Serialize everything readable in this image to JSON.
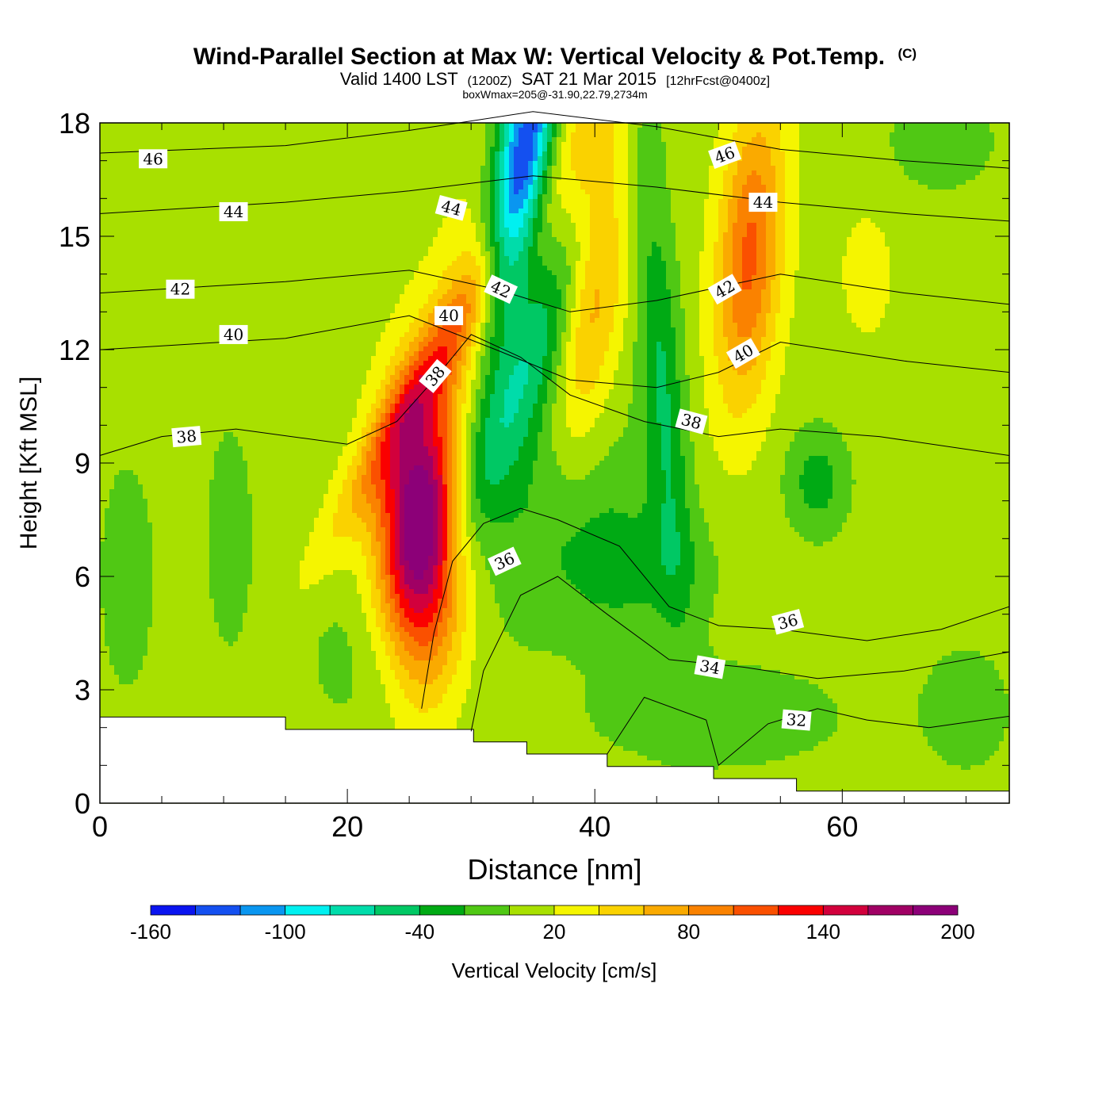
{
  "chart_data": {
    "type": "heatmap",
    "title": "Wind-Parallel Section at Max W: Vertical Velocity & Pot.Temp.",
    "title_mark": "(C)",
    "subtitle": {
      "valid": "Valid 1400 LST",
      "utc": "(1200Z)",
      "date": "SAT 21 Mar 2015",
      "forecast": "[12hrFcst@0400z]"
    },
    "box_info": "boxWmax=205@-31.90,22.79,2734m",
    "xlabel": "Distance [nm]",
    "ylabel": "Height [Kft MSL]",
    "xlim": [
      0,
      73.5
    ],
    "ylim": [
      0,
      18
    ],
    "x_ticks": [
      {
        "value": 0,
        "label": "0"
      },
      {
        "value": 20,
        "label": "20"
      },
      {
        "value": 40,
        "label": "40"
      },
      {
        "value": 60,
        "label": "60"
      }
    ],
    "y_ticks": [
      {
        "value": 0,
        "label": "0"
      },
      {
        "value": 3,
        "label": "3"
      },
      {
        "value": 6,
        "label": "6"
      },
      {
        "value": 9,
        "label": "9"
      },
      {
        "value": 12,
        "label": "12"
      },
      {
        "value": 15,
        "label": "15"
      },
      {
        "value": 18,
        "label": "18"
      }
    ],
    "colorbar": {
      "label": "Vertical Velocity [cm/s]",
      "levels": [
        -160,
        -140,
        -120,
        -100,
        -80,
        -60,
        -40,
        -20,
        0,
        20,
        40,
        60,
        80,
        100,
        120,
        140,
        160,
        180,
        200
      ],
      "colors": [
        "#0a14f0",
        "#1450f0",
        "#0a96f0",
        "#00f0f0",
        "#00dcaa",
        "#00c864",
        "#00aa14",
        "#50c814",
        "#a8e000",
        "#f5f500",
        "#fad200",
        "#faaa00",
        "#fa8200",
        "#fa5000",
        "#fa0000",
        "#d2003c",
        "#a00064",
        "#8c0078"
      ],
      "tick_labels": [
        {
          "value": -160,
          "label": "-160"
        },
        {
          "value": -100,
          "label": "-100"
        },
        {
          "value": -40,
          "label": "-40"
        },
        {
          "value": 20,
          "label": "20"
        },
        {
          "value": 80,
          "label": "80"
        },
        {
          "value": 140,
          "label": "140"
        },
        {
          "value": 200,
          "label": "200"
        }
      ]
    },
    "background_value": 10,
    "w_features": [
      {
        "x": 26,
        "z": 7.0,
        "sx": 3.2,
        "sz": 3.4,
        "tilt": 0.0,
        "amp": 205
      },
      {
        "x": 25.5,
        "z": 10.8,
        "sx": 2.2,
        "sz": 4.2,
        "tilt": 1.7,
        "amp": 60
      },
      {
        "x": 32,
        "z": 14.0,
        "sx": 4.5,
        "sz": 5.0,
        "tilt": 1.2,
        "amp": 60
      },
      {
        "x": 34,
        "z": 16.5,
        "sx": 2.3,
        "sz": 4.0,
        "tilt": 0.5,
        "amp": -190
      },
      {
        "x": 35,
        "z": 12.0,
        "sx": 3.0,
        "sz": 6.0,
        "tilt": 1.2,
        "amp": -70
      },
      {
        "x": 37,
        "z": 8.0,
        "sx": 6.0,
        "sz": 3.5,
        "tilt": 0.5,
        "amp": -30
      },
      {
        "x": 40,
        "z": 14.5,
        "sx": 2.6,
        "sz": 5.5,
        "tilt": 0.3,
        "amp": 75
      },
      {
        "x": 45.5,
        "z": 11.0,
        "sx": 1.7,
        "sz": 5.8,
        "tilt": -0.2,
        "amp": -50
      },
      {
        "x": 52.5,
        "z": 14.5,
        "sx": 2.6,
        "sz": 4.0,
        "tilt": 0.2,
        "amp": 95
      },
      {
        "x": 58,
        "z": 8.5,
        "sx": 2.5,
        "sz": 1.4,
        "tilt": 0.0,
        "amp": -40
      },
      {
        "x": 43,
        "z": 6.2,
        "sx": 6.5,
        "sz": 1.9,
        "tilt": 0.0,
        "amp": -33
      },
      {
        "x": 10.5,
        "z": 7.0,
        "sx": 2.0,
        "sz": 3.2,
        "tilt": 0.0,
        "amp": -22
      },
      {
        "x": 2.2,
        "z": 6.0,
        "sx": 2.2,
        "sz": 3.0,
        "tilt": 0.0,
        "amp": -25
      },
      {
        "x": 19.5,
        "z": 4.0,
        "sx": 3.5,
        "sz": 2.2,
        "tilt": 0.0,
        "amp": -15
      },
      {
        "x": 50,
        "z": 2.3,
        "sx": 11.0,
        "sz": 1.5,
        "tilt": 0.0,
        "amp": -22
      },
      {
        "x": 70,
        "z": 2.5,
        "sx": 3.5,
        "sz": 1.6,
        "tilt": 0.0,
        "amp": -25
      },
      {
        "x": 62,
        "z": 14.0,
        "sx": 2.5,
        "sz": 2.0,
        "tilt": 0.0,
        "amp": 18
      },
      {
        "x": 68,
        "z": 17.5,
        "sx": 5.0,
        "sz": 1.5,
        "tilt": 0.0,
        "amp": -20
      }
    ],
    "terrain": {
      "x": [
        0,
        15,
        15,
        30.2,
        30.2,
        34.5,
        34.5,
        41,
        41,
        49.6,
        49.6,
        56.3,
        56.3,
        73.5
      ],
      "z": [
        2.28,
        2.28,
        1.95,
        1.95,
        1.62,
        1.62,
        1.3,
        1.3,
        0.97,
        0.97,
        0.65,
        0.65,
        0.32,
        0.32
      ]
    },
    "theta_contours": [
      {
        "label": "46",
        "x": [
          0,
          15,
          25,
          35,
          45,
          55,
          65,
          73.5
        ],
        "z": [
          17.2,
          17.4,
          17.8,
          18.3,
          17.9,
          17.3,
          17.0,
          16.8
        ]
      },
      {
        "label": "44",
        "x": [
          0,
          15,
          25,
          35,
          45,
          55,
          65,
          73.5
        ],
        "z": [
          15.6,
          15.9,
          16.2,
          16.6,
          16.3,
          15.9,
          15.6,
          15.4
        ]
      },
      {
        "label": "42",
        "x": [
          0,
          15,
          25,
          32,
          38,
          45,
          55,
          65,
          73.5
        ],
        "z": [
          13.5,
          13.8,
          14.1,
          13.6,
          13.0,
          13.3,
          14.0,
          13.5,
          13.2
        ]
      },
      {
        "label": "40",
        "x": [
          0,
          15,
          25,
          32,
          38,
          45,
          50,
          55,
          65,
          73.5
        ],
        "z": [
          12.0,
          12.3,
          12.9,
          12.0,
          11.2,
          11.0,
          11.4,
          12.2,
          11.7,
          11.4
        ]
      },
      {
        "label": "38",
        "x": [
          0,
          5,
          11,
          20,
          24,
          27,
          30,
          34,
          38,
          44,
          50,
          55,
          63,
          73.5
        ],
        "z": [
          9.2,
          9.7,
          9.9,
          9.5,
          10.1,
          11.2,
          12.4,
          11.8,
          10.8,
          10.1,
          9.7,
          9.9,
          9.7,
          9.2
        ]
      },
      {
        "label": "36",
        "x": [
          26,
          27,
          28.5,
          31,
          34,
          37,
          42,
          46,
          50,
          55,
          62,
          68,
          73.5
        ],
        "z": [
          2.5,
          4.5,
          6.4,
          7.4,
          7.8,
          7.5,
          6.8,
          5.2,
          4.7,
          4.6,
          4.3,
          4.6,
          5.2
        ]
      },
      {
        "label": "34",
        "x": [
          30,
          31,
          34,
          37,
          41,
          46,
          52,
          58,
          65,
          73.5
        ],
        "z": [
          1.9,
          3.5,
          5.5,
          6.0,
          5.0,
          3.8,
          3.6,
          3.3,
          3.5,
          4.0
        ]
      },
      {
        "label": "32",
        "x": [
          41,
          44,
          49,
          50,
          54,
          58,
          62,
          67,
          73.5
        ],
        "z": [
          1.3,
          2.8,
          2.2,
          1.0,
          2.1,
          2.5,
          2.2,
          2.0,
          2.3
        ]
      }
    ],
    "theta_labels": [
      {
        "text": "46",
        "x": 4.3,
        "z": 17.05,
        "angle": 0
      },
      {
        "text": "46",
        "x": 50.5,
        "z": 17.15,
        "angle": -20
      },
      {
        "text": "44",
        "x": 10.8,
        "z": 15.65,
        "angle": 0
      },
      {
        "text": "44",
        "x": 28.4,
        "z": 15.75,
        "angle": 15
      },
      {
        "text": "44",
        "x": 53.6,
        "z": 15.9,
        "angle": 0
      },
      {
        "text": "42",
        "x": 6.5,
        "z": 13.6,
        "angle": 0
      },
      {
        "text": "42",
        "x": 32.4,
        "z": 13.6,
        "angle": 25
      },
      {
        "text": "42",
        "x": 50.5,
        "z": 13.6,
        "angle": -30
      },
      {
        "text": "40",
        "x": 10.8,
        "z": 12.4,
        "angle": 0
      },
      {
        "text": "40",
        "x": 28.2,
        "z": 12.9,
        "angle": 0
      },
      {
        "text": "40",
        "x": 52.0,
        "z": 11.9,
        "angle": -30
      },
      {
        "text": "38",
        "x": 7.0,
        "z": 9.7,
        "angle": -5
      },
      {
        "text": "38",
        "x": 27.1,
        "z": 11.3,
        "angle": -50
      },
      {
        "text": "38",
        "x": 47.8,
        "z": 10.1,
        "angle": 15
      },
      {
        "text": "36",
        "x": 32.7,
        "z": 6.4,
        "angle": -25
      },
      {
        "text": "36",
        "x": 55.6,
        "z": 4.8,
        "angle": -15
      },
      {
        "text": "34",
        "x": 49.3,
        "z": 3.6,
        "angle": 10
      },
      {
        "text": "32",
        "x": 56.3,
        "z": 2.2,
        "angle": 5
      }
    ]
  }
}
